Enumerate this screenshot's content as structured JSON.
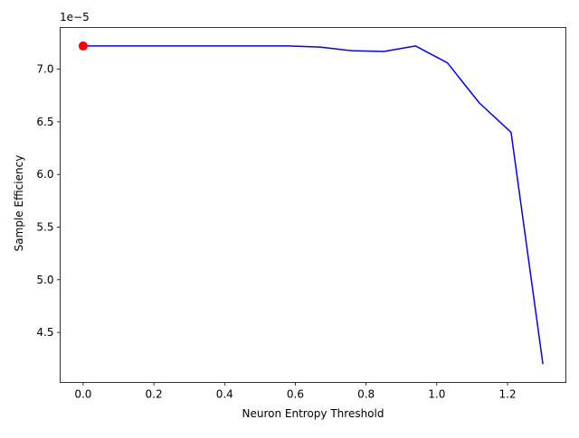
{
  "chart_data": {
    "type": "line",
    "title": "",
    "xlabel": "Neuron Entropy Threshold",
    "ylabel": "Sample Efficiency",
    "y_offset_label": "1e−5",
    "xlim": [
      -0.065,
      1.365
    ],
    "ylim": [
      4.025e-05,
      7.395e-05
    ],
    "grid": false,
    "x_ticks": [
      0.0,
      0.2,
      0.4,
      0.6,
      0.8,
      1.0,
      1.2
    ],
    "x_tick_labels": [
      "0.0",
      "0.2",
      "0.4",
      "0.6",
      "0.8",
      "1.0",
      "1.2"
    ],
    "y_ticks": [
      4.5e-05,
      5e-05,
      5.5e-05,
      6e-05,
      6.5e-05,
      7e-05
    ],
    "y_tick_labels": [
      "4.5",
      "5.0",
      "5.5",
      "6.0",
      "6.5",
      "7.0"
    ],
    "series": [
      {
        "color": "#0000ff",
        "x": [
          0.0,
          0.09,
          0.18,
          0.27,
          0.36,
          0.45,
          0.58,
          0.67,
          0.76,
          0.85,
          0.94,
          1.03,
          1.12,
          1.21,
          1.3
        ],
        "y": [
          7.22e-05,
          7.22e-05,
          7.22e-05,
          7.22e-05,
          7.22e-05,
          7.22e-05,
          7.22e-05,
          7.21e-05,
          7.175e-05,
          7.168e-05,
          7.22e-05,
          7.06e-05,
          6.68e-05,
          6.4e-05,
          4.2e-05
        ]
      }
    ],
    "highlight_point": {
      "x": 0.0,
      "y": 7.22e-05,
      "color": "#ff0000"
    }
  }
}
